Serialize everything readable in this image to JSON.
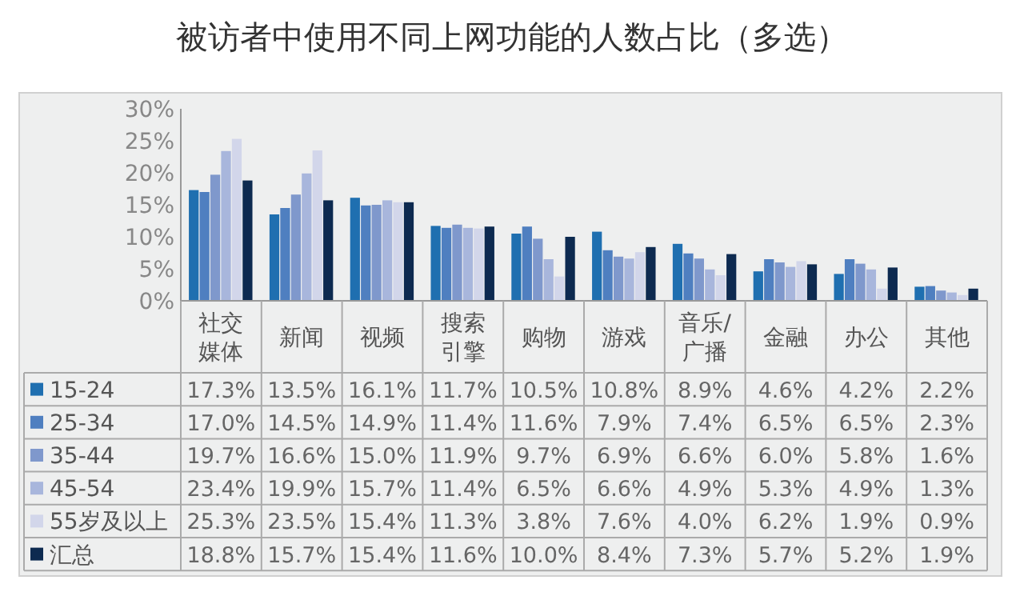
{
  "chart_data": {
    "type": "bar",
    "title": "被访者中使用不同上网功能的人数占比（多选）",
    "categories": [
      "社交媒体",
      "新闻",
      "视频",
      "搜索引擎",
      "购物",
      "游戏",
      "音乐/广播",
      "金融",
      "办公",
      "其他"
    ],
    "series": [
      {
        "name": "15-24",
        "color": "#1f6fb0",
        "values": [
          17.3,
          13.5,
          16.1,
          11.7,
          10.5,
          10.8,
          8.9,
          4.6,
          4.2,
          2.2
        ],
        "value_labels": [
          "17.3%",
          "13.5%",
          "16.1%",
          "11.7%",
          "10.5%",
          "10.8%",
          "8.9%",
          "4.6%",
          "4.2%",
          "2.2%"
        ]
      },
      {
        "name": "25-34",
        "color": "#4f7fc0",
        "values": [
          17.0,
          14.5,
          14.9,
          11.4,
          11.6,
          7.9,
          7.4,
          6.5,
          6.5,
          2.3
        ],
        "value_labels": [
          "17.0%",
          "14.5%",
          "14.9%",
          "11.4%",
          "11.6%",
          "7.9%",
          "7.4%",
          "6.5%",
          "6.5%",
          "2.3%"
        ]
      },
      {
        "name": "35-44",
        "color": "#7f98cc",
        "values": [
          19.7,
          16.6,
          15.0,
          11.9,
          9.7,
          6.9,
          6.6,
          6.0,
          5.8,
          1.6
        ],
        "value_labels": [
          "19.7%",
          "16.6%",
          "15.0%",
          "11.9%",
          "9.7%",
          "6.9%",
          "6.6%",
          "6.0%",
          "5.8%",
          "1.6%"
        ]
      },
      {
        "name": "45-54",
        "color": "#a8b6dc",
        "values": [
          23.4,
          19.9,
          15.7,
          11.4,
          6.5,
          6.6,
          4.9,
          5.3,
          4.9,
          1.3
        ],
        "value_labels": [
          "23.4%",
          "19.9%",
          "15.7%",
          "11.4%",
          "6.5%",
          "6.6%",
          "4.9%",
          "5.3%",
          "4.9%",
          "1.3%"
        ]
      },
      {
        "name": "55岁及以上",
        "color": "#d2d6ea",
        "values": [
          25.3,
          23.5,
          15.4,
          11.3,
          3.8,
          7.6,
          4.0,
          6.2,
          1.9,
          0.9
        ],
        "value_labels": [
          "25.3%",
          "23.5%",
          "15.4%",
          "11.3%",
          "3.8%",
          "7.6%",
          "4.0%",
          "6.2%",
          "1.9%",
          "0.9%"
        ]
      },
      {
        "name": "汇总",
        "color": "#0d2a50",
        "values": [
          18.8,
          15.7,
          15.4,
          11.6,
          10.0,
          8.4,
          7.3,
          5.7,
          5.2,
          1.9
        ],
        "value_labels": [
          "18.8%",
          "15.7%",
          "15.4%",
          "11.6%",
          "10.0%",
          "8.4%",
          "7.3%",
          "5.7%",
          "5.2%",
          "1.9%"
        ]
      }
    ],
    "ylim": [
      0,
      30
    ],
    "yticks": [
      {
        "value": 0,
        "label": "0%"
      },
      {
        "value": 5,
        "label": "5%"
      },
      {
        "value": 10,
        "label": "10%"
      },
      {
        "value": 15,
        "label": "15%"
      },
      {
        "value": 20,
        "label": "20%"
      },
      {
        "value": 25,
        "label": "25%"
      },
      {
        "value": 30,
        "label": "30%"
      }
    ],
    "grid": false,
    "legend": "bottom"
  }
}
